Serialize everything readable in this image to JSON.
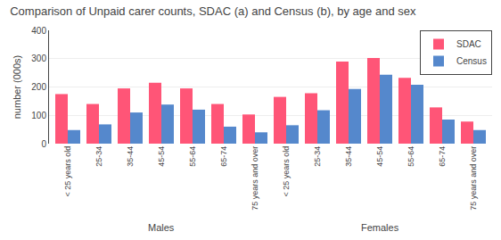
{
  "chart_data": {
    "type": "bar",
    "title": "Comparison of Unpaid carer counts, SDAC (a) and Census (b), by age and sex",
    "y_label": "number (000s)",
    "categories": [
      "< 25 years old",
      "25-34",
      "35-44",
      "45-54",
      "55-64",
      "65-74",
      "75 years and over",
      "< 25 years old",
      "25-34",
      "35-44",
      "45-54",
      "55-64",
      "65-74",
      "75 years and over"
    ],
    "series": [
      {
        "name": "SDAC",
        "color": "#FF5577",
        "values": [
          175,
          140,
          195,
          215,
          195,
          140,
          103,
          165,
          178,
          290,
          302,
          232,
          128,
          78
        ]
      },
      {
        "name": "Census",
        "color": "#5588CC",
        "values": [
          48,
          68,
          110,
          138,
          120,
          60,
          40,
          65,
          118,
          193,
          243,
          208,
          85,
          48
        ]
      }
    ],
    "annotations": [
      {
        "text": "Males",
        "x": 3
      },
      {
        "text": "Females",
        "x": 10
      }
    ],
    "ylim": [
      0,
      400
    ],
    "yticks": [
      0,
      100,
      200,
      300,
      400
    ],
    "grid": true,
    "legend": "upper right"
  }
}
